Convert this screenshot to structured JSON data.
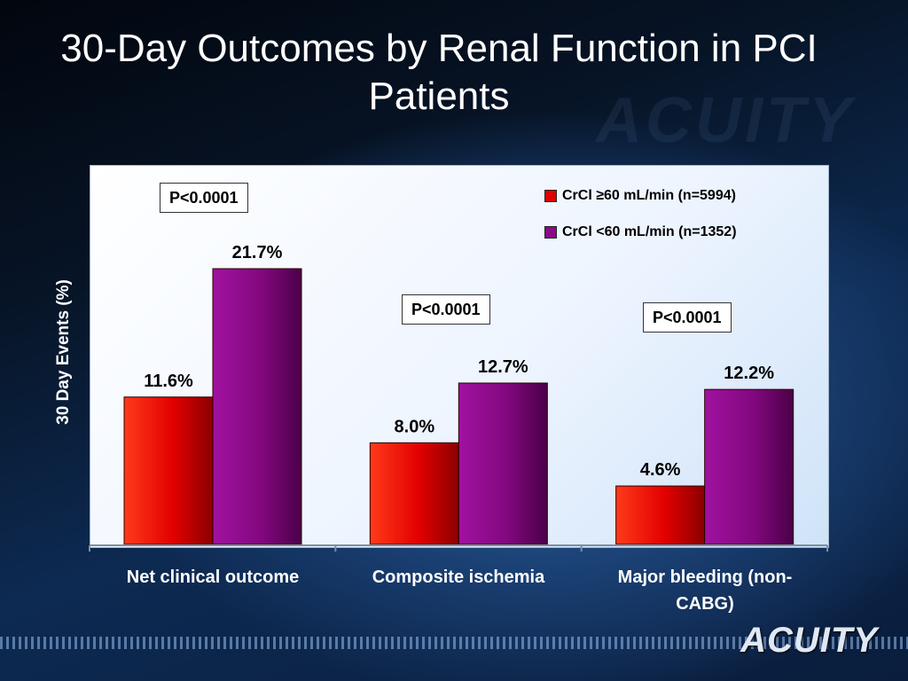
{
  "slide": {
    "title": "30-Day Outcomes by Renal Function in PCI Patients",
    "logo": "ACUITY"
  },
  "chart_data": {
    "type": "bar",
    "title": "",
    "xlabel": "",
    "ylabel": "30 Day Events (%)",
    "ylim": [
      0,
      25
    ],
    "grid": false,
    "legend_position": "top-right",
    "categories": [
      "Net clinical outcome",
      "Composite ischemia",
      "Major bleeding (non-CABG)"
    ],
    "series": [
      {
        "name": "CrCl ≥60 mL/min (n=5994)",
        "color": "#e00000",
        "values": [
          11.6,
          8.0,
          4.6
        ],
        "labels": [
          "11.6%",
          "8.0%",
          "4.6%"
        ]
      },
      {
        "name": "CrCl <60 mL/min (n=1352)",
        "color": "#8a0a8a",
        "values": [
          21.7,
          12.7,
          12.2
        ],
        "labels": [
          "21.7%",
          "12.7%",
          "12.2%"
        ]
      }
    ],
    "annotations": [
      "P<0.0001",
      "P<0.0001",
      "P<0.0001"
    ]
  }
}
